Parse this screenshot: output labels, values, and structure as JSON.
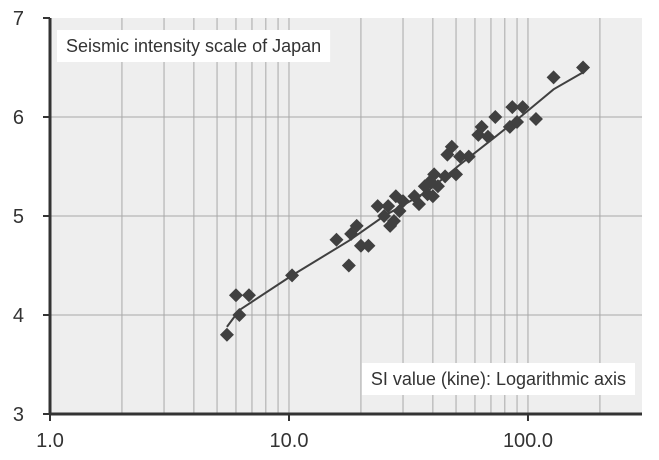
{
  "chart_data": {
    "type": "scatter",
    "title": "Seismic intensity scale of Japan",
    "xlabel": "SI value (kine): Logarithmic axis",
    "ylabel": "",
    "x_scale": "log",
    "xlim": [
      1.0,
      300.0
    ],
    "ylim": [
      3,
      7
    ],
    "x_ticks": [
      "1.0",
      "10.0",
      "100.0"
    ],
    "y_ticks": [
      "3",
      "4",
      "5",
      "6",
      "7"
    ],
    "grid": true,
    "colors": {
      "background": "#eeeeee",
      "grid": "#a8a8a8",
      "axis": "#333333",
      "marker": "#404040",
      "line": "#404040"
    },
    "points": [
      {
        "x": 5.5,
        "y": 3.8
      },
      {
        "x": 6.0,
        "y": 4.2
      },
      {
        "x": 6.2,
        "y": 4.0
      },
      {
        "x": 6.8,
        "y": 4.2
      },
      {
        "x": 10.3,
        "y": 4.4
      },
      {
        "x": 15.8,
        "y": 4.76
      },
      {
        "x": 17.8,
        "y": 4.5
      },
      {
        "x": 18.2,
        "y": 4.82
      },
      {
        "x": 19.2,
        "y": 4.9
      },
      {
        "x": 20.0,
        "y": 4.7
      },
      {
        "x": 21.5,
        "y": 4.7
      },
      {
        "x": 23.5,
        "y": 5.1
      },
      {
        "x": 25.0,
        "y": 5.0
      },
      {
        "x": 26.0,
        "y": 5.1
      },
      {
        "x": 26.5,
        "y": 4.9
      },
      {
        "x": 27.5,
        "y": 4.95
      },
      {
        "x": 28.0,
        "y": 5.2
      },
      {
        "x": 29.0,
        "y": 5.05
      },
      {
        "x": 30.0,
        "y": 5.15
      },
      {
        "x": 33.5,
        "y": 5.2
      },
      {
        "x": 35.0,
        "y": 5.12
      },
      {
        "x": 37.0,
        "y": 5.3
      },
      {
        "x": 38.0,
        "y": 5.22
      },
      {
        "x": 39.0,
        "y": 5.35
      },
      {
        "x": 40.0,
        "y": 5.2
      },
      {
        "x": 40.5,
        "y": 5.42
      },
      {
        "x": 42.0,
        "y": 5.3
      },
      {
        "x": 45.0,
        "y": 5.4
      },
      {
        "x": 46.0,
        "y": 5.62
      },
      {
        "x": 48.0,
        "y": 5.7
      },
      {
        "x": 50.0,
        "y": 5.42
      },
      {
        "x": 52.0,
        "y": 5.6
      },
      {
        "x": 56.5,
        "y": 5.6
      },
      {
        "x": 62.0,
        "y": 5.82
      },
      {
        "x": 64.0,
        "y": 5.9
      },
      {
        "x": 68.0,
        "y": 5.8
      },
      {
        "x": 73.0,
        "y": 6.0
      },
      {
        "x": 84.0,
        "y": 5.9
      },
      {
        "x": 86.0,
        "y": 6.1
      },
      {
        "x": 90.0,
        "y": 5.95
      },
      {
        "x": 95.0,
        "y": 6.1
      },
      {
        "x": 108.0,
        "y": 5.98
      },
      {
        "x": 128.0,
        "y": 6.4
      },
      {
        "x": 170.0,
        "y": 6.5
      }
    ],
    "trend_line": [
      {
        "x": 5.5,
        "y": 3.88
      },
      {
        "x": 6.2,
        "y": 4.05
      },
      {
        "x": 10.3,
        "y": 4.4
      },
      {
        "x": 17.8,
        "y": 4.75
      },
      {
        "x": 25.0,
        "y": 5.0
      },
      {
        "x": 38.0,
        "y": 5.25
      },
      {
        "x": 52.0,
        "y": 5.52
      },
      {
        "x": 73.0,
        "y": 5.8
      },
      {
        "x": 95.0,
        "y": 6.02
      },
      {
        "x": 128.0,
        "y": 6.28
      },
      {
        "x": 170.0,
        "y": 6.45
      }
    ]
  }
}
